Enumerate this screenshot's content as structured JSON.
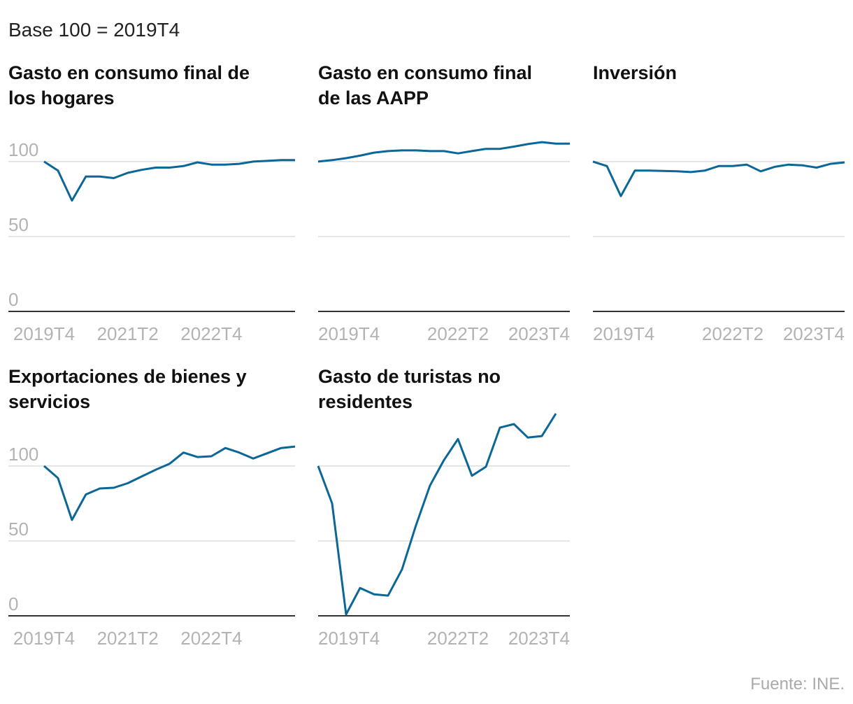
{
  "subtitle": "Base 100 = 2019T4",
  "source": "Fuente: INE.",
  "chart_data": [
    {
      "type": "line",
      "title": "Gasto en consumo final de los hogares",
      "categories": [
        "2019T4",
        "2020T1",
        "2020T2",
        "2020T3",
        "2020T4",
        "2021T1",
        "2021T2",
        "2021T3",
        "2021T4",
        "2022T1",
        "2022T2",
        "2022T3",
        "2022T4",
        "2023T1",
        "2023T2",
        "2023T3",
        "2023T4",
        "2024T1",
        "2024T2"
      ],
      "values": [
        100,
        94,
        74,
        90,
        90,
        89,
        92.5,
        94.5,
        96,
        96,
        97,
        99.5,
        98,
        98,
        98.5,
        100,
        100.5,
        101,
        101
      ],
      "color": "#0b6797",
      "ylim": [
        0,
        135
      ],
      "yticks": [
        0,
        50,
        100
      ],
      "ytick_labels": true,
      "xticks": [
        "2019T4",
        "2021T2",
        "2022T4"
      ]
    },
    {
      "type": "line",
      "title": "Gasto en consumo final de las AAPP",
      "categories": [
        "2019T4",
        "2020T1",
        "2020T2",
        "2020T3",
        "2020T4",
        "2021T1",
        "2021T2",
        "2021T3",
        "2021T4",
        "2022T1",
        "2022T2",
        "2022T3",
        "2022T4",
        "2023T1",
        "2023T2",
        "2023T3",
        "2023T4",
        "2024T1",
        "2024T2"
      ],
      "values": [
        100,
        101,
        102.3,
        104,
        106,
        107,
        107.5,
        107.5,
        107,
        107,
        105.5,
        107,
        108.5,
        108.5,
        110,
        111.7,
        113,
        112,
        112
      ],
      "color": "#0b6797",
      "ylim": [
        0,
        135
      ],
      "yticks": [
        0,
        50,
        100
      ],
      "ytick_labels": false,
      "xticks": [
        "2019T4",
        "2022T2",
        "2023T4"
      ]
    },
    {
      "type": "line",
      "title": "Inversión",
      "categories": [
        "2019T4",
        "2020T1",
        "2020T2",
        "2020T3",
        "2020T4",
        "2021T1",
        "2021T2",
        "2021T3",
        "2021T4",
        "2022T1",
        "2022T2",
        "2022T3",
        "2022T4",
        "2023T1",
        "2023T2",
        "2023T3",
        "2023T4",
        "2024T1",
        "2024T2"
      ],
      "values": [
        100,
        97,
        77,
        94,
        94,
        93.8,
        93.5,
        93,
        94,
        97,
        97,
        98,
        93.5,
        96.5,
        98,
        97.5,
        96,
        98.5,
        99.5
      ],
      "color": "#0b6797",
      "ylim": [
        0,
        135
      ],
      "yticks": [
        0,
        50,
        100
      ],
      "ytick_labels": false,
      "xticks": [
        "2019T4",
        "2022T2",
        "2023T4"
      ]
    },
    {
      "type": "line",
      "title": "Exportaciones de bienes y servicios",
      "categories": [
        "2019T4",
        "2020T1",
        "2020T2",
        "2020T3",
        "2020T4",
        "2021T1",
        "2021T2",
        "2021T3",
        "2021T4",
        "2022T1",
        "2022T2",
        "2022T3",
        "2022T4",
        "2023T1",
        "2023T2",
        "2023T3",
        "2023T4",
        "2024T1",
        "2024T2"
      ],
      "values": [
        100,
        92,
        64,
        81,
        85,
        85.5,
        88.5,
        93,
        97.5,
        101.5,
        109,
        106,
        106.5,
        112,
        109,
        105,
        108.5,
        112,
        113
      ],
      "color": "#0b6797",
      "ylim": [
        0,
        135
      ],
      "yticks": [
        0,
        50,
        100
      ],
      "ytick_labels": true,
      "xticks": [
        "2019T4",
        "2021T2",
        "2022T4"
      ]
    },
    {
      "type": "line",
      "title": "Gasto de turistas no residentes",
      "categories": [
        "2019T4",
        "2020T1",
        "2020T2",
        "2020T3",
        "2020T4",
        "2021T1",
        "2021T2",
        "2021T3",
        "2021T4",
        "2022T1",
        "2022T2",
        "2022T3",
        "2022T4",
        "2023T1",
        "2023T2",
        "2023T3",
        "2023T4",
        "2024T1",
        "2024T2"
      ],
      "values": [
        100,
        75,
        1,
        18.6,
        14.4,
        13.5,
        31,
        60.5,
        87,
        104,
        118,
        93.5,
        99.5,
        125.6,
        128,
        119,
        120,
        135,
        null
      ],
      "color": "#0b6797",
      "ylim": [
        0,
        135
      ],
      "yticks": [
        0,
        50,
        100
      ],
      "ytick_labels": false,
      "xticks": [
        "2019T4",
        "2022T2",
        "2023T4"
      ]
    }
  ]
}
